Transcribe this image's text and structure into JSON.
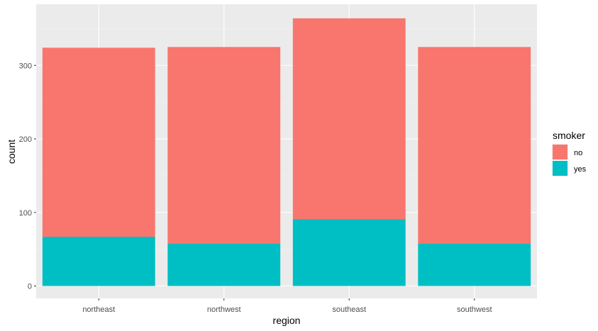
{
  "chart_data": {
    "type": "bar",
    "stacked": true,
    "categories": [
      "northeast",
      "northwest",
      "southeast",
      "southwest"
    ],
    "series": [
      {
        "name": "no",
        "color": "#F8766D",
        "values": [
          257,
          267,
          273,
          267
        ]
      },
      {
        "name": "yes",
        "color": "#00BFC4",
        "values": [
          67,
          58,
          91,
          58
        ]
      }
    ],
    "xlabel": "region",
    "ylabel": "count",
    "ylim": [
      0,
      384
    ],
    "yticks": [
      0,
      100,
      200,
      300
    ],
    "grid": true,
    "legend": {
      "title": "smoker",
      "position": "right"
    }
  }
}
